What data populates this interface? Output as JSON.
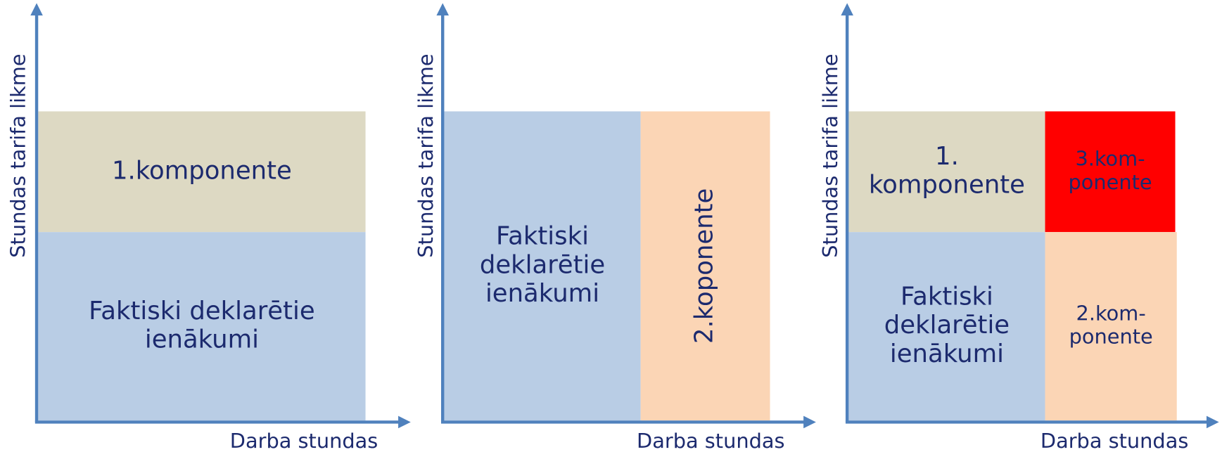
{
  "panels": [
    {
      "y_axis_label": "Stundas tarifa likme",
      "x_axis_label": "Darba stundas",
      "blocks": [
        {
          "lines": [
            "1.komponente"
          ]
        },
        {
          "lines": [
            "Faktiski deklarētie",
            "ienākumi"
          ]
        }
      ]
    },
    {
      "y_axis_label": "Stundas tarifa likme",
      "x_axis_label": "Darba stundas",
      "blocks": [
        {
          "lines": [
            "Faktiski",
            "deklarētie",
            "ienākumi"
          ]
        },
        {
          "lines": [
            "2.koponente"
          ]
        }
      ]
    },
    {
      "y_axis_label": "Stundas tarifa likme",
      "x_axis_label": "Darba stundas",
      "blocks": [
        {
          "lines": [
            "1.",
            "komponente"
          ]
        },
        {
          "lines": [
            "3.kom-",
            "ponente"
          ]
        },
        {
          "lines": [
            "Faktiski",
            "deklarētie",
            "ienākumi"
          ]
        },
        {
          "lines": [
            "2.kom-",
            "ponente"
          ]
        }
      ]
    }
  ]
}
